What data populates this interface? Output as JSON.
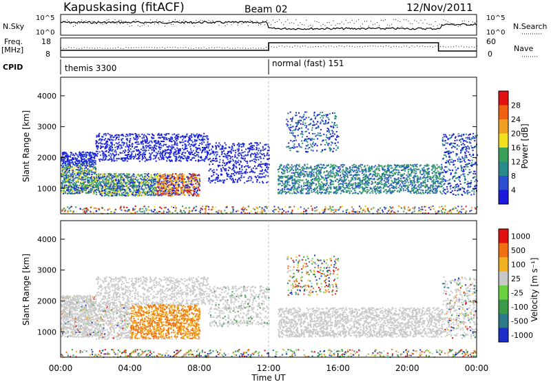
{
  "header": {
    "station": "Kapuskasing (fitACF)",
    "beam": "Beam 02",
    "date": "12/Nov/2011"
  },
  "noise_panel": {
    "left_label": "N.Sky",
    "right_label": "N.Search",
    "left_ticks": [
      "10^5",
      "10^0"
    ],
    "right_ticks": [
      "10^5",
      "10^0"
    ]
  },
  "freq_panel": {
    "left_label_1": "Freq.",
    "left_label_2": "[MHz]",
    "right_label": "Nave",
    "left_ticks": [
      "18",
      "8"
    ],
    "right_ticks": [
      "60",
      "0"
    ]
  },
  "cpid": {
    "label": "CPID",
    "segments": [
      {
        "name": "themis 3300",
        "start_hour": 0,
        "end_hour": 12
      },
      {
        "name": "normal (fast) 151",
        "start_hour": 12,
        "end_hour": 24
      }
    ]
  },
  "chart_data": [
    {
      "type": "heatmap",
      "title": "",
      "xlabel": "",
      "ylabel": "Slant Range [km]",
      "ylim": [
        180,
        4600
      ],
      "yticks": [
        "1000",
        "2000",
        "3000",
        "4000"
      ],
      "xlim_hours": [
        0,
        24
      ],
      "colorbar": {
        "label": "Power [dB]",
        "ticks": [
          "4",
          "8",
          "12",
          "16",
          "20",
          "24",
          "28"
        ],
        "colors": [
          "#1a1adc",
          "#2a4fd0",
          "#2a8a8a",
          "#3aa05a",
          "#f0e020",
          "#f0a020",
          "#f06010",
          "#e01010"
        ]
      }
    },
    {
      "type": "heatmap",
      "title": "",
      "xlabel": "Time UT",
      "ylabel": "Slant Range [km]",
      "ylim": [
        180,
        4600
      ],
      "yticks": [
        "1000",
        "2000",
        "3000",
        "4000"
      ],
      "xticks": [
        "00:00",
        "04:00",
        "08:00",
        "12:00",
        "16:00",
        "20:00",
        "00:00"
      ],
      "colorbar": {
        "label": "Velocity [m s⁻¹]",
        "ticks": [
          "1000",
          "500",
          "100",
          "25",
          "-25",
          "-100",
          "-500",
          "-1000"
        ],
        "colors": [
          "#1a2fc8",
          "#2a7a8a",
          "#3a9a4a",
          "#6ad040",
          "#c8c8c8",
          "#f0b020",
          "#f07010",
          "#e01010"
        ]
      }
    }
  ]
}
